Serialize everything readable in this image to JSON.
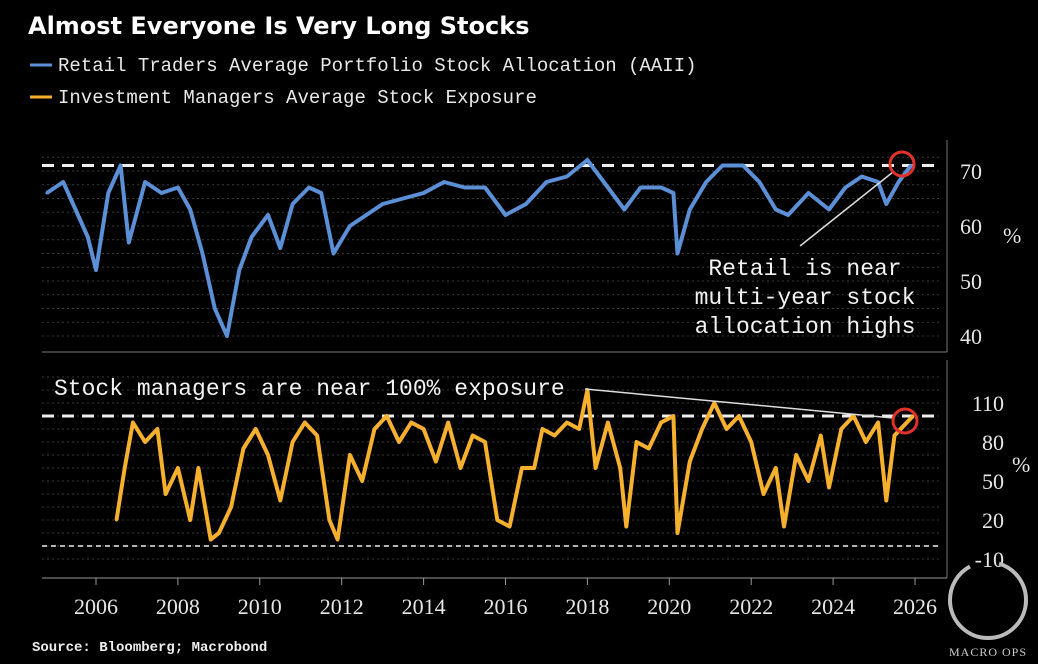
{
  "chart_data": [
    {
      "type": "line",
      "title": "Almost Everyone Is Very Long Stocks",
      "series": [
        {
          "name": "Retail Traders Average Portfolio Stock Allocation (AAII)",
          "color": "#5b8fd6",
          "x": [
            2004.8,
            2005.2,
            2005.5,
            2005.8,
            2006.0,
            2006.3,
            2006.6,
            2006.8,
            2007.2,
            2007.6,
            2008.0,
            2008.3,
            2008.6,
            2008.9,
            2009.2,
            2009.5,
            2009.8,
            2010.2,
            2010.5,
            2010.8,
            2011.2,
            2011.5,
            2011.8,
            2012.2,
            2012.6,
            2013.0,
            2013.5,
            2014.0,
            2014.5,
            2015.0,
            2015.5,
            2016.0,
            2016.5,
            2017.0,
            2017.5,
            2018.0,
            2018.4,
            2018.9,
            2019.3,
            2019.8,
            2020.1,
            2020.2,
            2020.5,
            2020.9,
            2021.3,
            2021.8,
            2022.2,
            2022.6,
            2022.9,
            2023.4,
            2023.9,
            2024.3,
            2024.7,
            2025.1,
            2025.3,
            2025.6,
            2025.9
          ],
          "values": [
            66,
            68,
            63,
            58,
            52,
            66,
            71,
            57,
            68,
            66,
            67,
            63,
            55,
            45,
            40,
            52,
            58,
            62,
            56,
            64,
            67,
            66,
            55,
            60,
            62,
            64,
            65,
            66,
            68,
            67,
            67,
            62,
            64,
            68,
            69,
            72,
            68,
            63,
            67,
            67,
            66,
            55,
            63,
            68,
            71,
            71,
            68,
            63,
            62,
            66,
            63,
            67,
            69,
            68,
            64,
            68,
            71
          ]
        }
      ],
      "yticks": [
        70,
        60,
        50,
        40
      ],
      "ylim": [
        38,
        74
      ],
      "reference_line": 71,
      "yunit": "%",
      "annotation": [
        "Retail is near",
        "multi-year stock",
        "allocation highs"
      ]
    },
    {
      "type": "line",
      "series": [
        {
          "name": "Investment Managers Average Stock Exposure",
          "color": "#f5b02e",
          "x": [
            2006.5,
            2006.7,
            2006.9,
            2007.2,
            2007.5,
            2007.7,
            2008.0,
            2008.3,
            2008.5,
            2008.8,
            2009.0,
            2009.3,
            2009.6,
            2009.9,
            2010.2,
            2010.5,
            2010.8,
            2011.1,
            2011.4,
            2011.7,
            2011.9,
            2012.2,
            2012.5,
            2012.8,
            2013.1,
            2013.4,
            2013.7,
            2014.0,
            2014.3,
            2014.6,
            2014.9,
            2015.2,
            2015.5,
            2015.8,
            2016.1,
            2016.4,
            2016.7,
            2016.9,
            2017.2,
            2017.5,
            2017.8,
            2018.0,
            2018.2,
            2018.5,
            2018.8,
            2018.95,
            2019.2,
            2019.5,
            2019.8,
            2020.1,
            2020.2,
            2020.5,
            2020.8,
            2021.1,
            2021.4,
            2021.7,
            2022.0,
            2022.3,
            2022.6,
            2022.8,
            2023.1,
            2023.4,
            2023.7,
            2023.9,
            2024.2,
            2024.5,
            2024.8,
            2025.1,
            2025.3,
            2025.5,
            2025.8,
            2025.95
          ],
          "values": [
            20,
            60,
            95,
            80,
            90,
            40,
            60,
            20,
            60,
            5,
            10,
            30,
            75,
            90,
            70,
            35,
            80,
            95,
            85,
            20,
            5,
            70,
            50,
            90,
            100,
            80,
            95,
            90,
            65,
            95,
            60,
            85,
            80,
            20,
            15,
            60,
            60,
            90,
            85,
            95,
            90,
            120,
            60,
            95,
            60,
            15,
            80,
            75,
            95,
            100,
            10,
            65,
            90,
            110,
            90,
            100,
            80,
            40,
            60,
            15,
            70,
            50,
            85,
            45,
            90,
            100,
            80,
            95,
            35,
            85,
            95,
            100
          ]
        }
      ],
      "yticks": [
        110,
        80,
        50,
        20,
        -10
      ],
      "ylim": [
        -15,
        130
      ],
      "reference_lines": [
        100,
        0
      ],
      "yunit": "%",
      "annotation": "Stock managers are near 100% exposure"
    }
  ],
  "xticks": [
    2006,
    2008,
    2010,
    2012,
    2014,
    2016,
    2018,
    2020,
    2022,
    2024,
    2026
  ],
  "source": "Source: Bloomberg; Macrobond",
  "logo_text": "MACRO OPS"
}
